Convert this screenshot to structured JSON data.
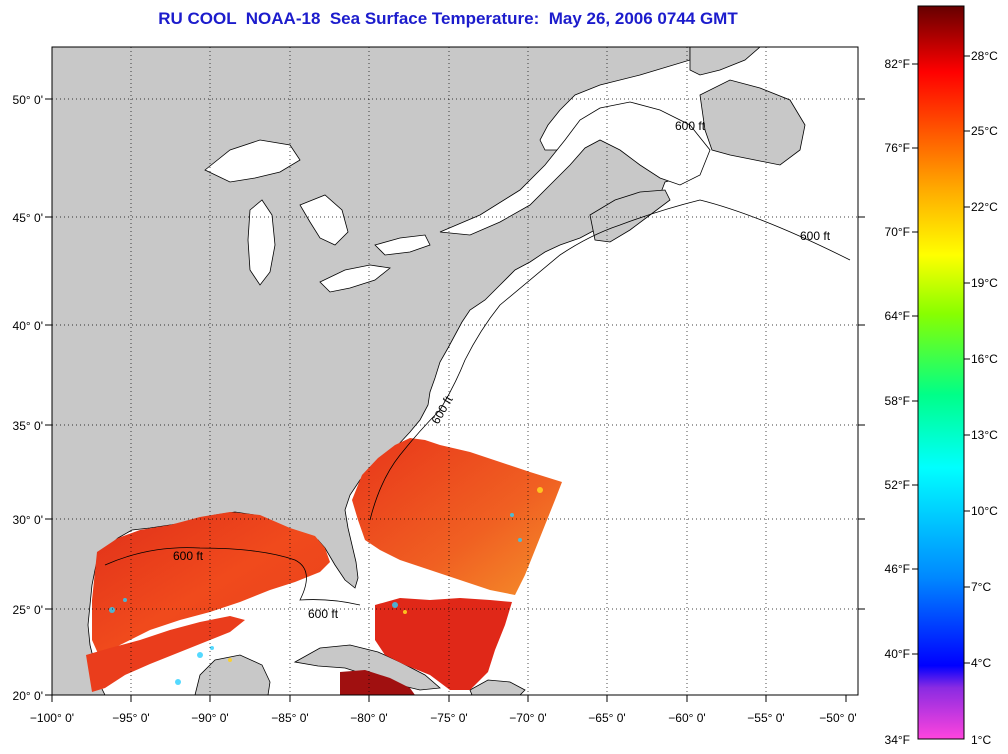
{
  "title": "RU COOL  NOAA-18  Sea Surface Temperature:  May 26, 2006 0744 GMT",
  "map": {
    "lon_range": [
      -100,
      -50
    ],
    "lat_range": [
      20,
      52.5
    ],
    "lon_ticks": [
      "−100° 0'",
      "−95° 0'",
      "−90° 0'",
      "−85° 0'",
      "−80° 0'",
      "−75° 0'",
      "−70° 0'",
      "−65° 0'",
      "−60° 0'",
      "−55° 0'",
      "−50° 0'"
    ],
    "lat_ticks": [
      "20° 0'",
      "25° 0'",
      "30° 0'",
      "35° 0'",
      "40° 0'",
      "45° 0'",
      "50° 0'"
    ],
    "contour_label": "600 ft",
    "land_color": "#c8c8c8",
    "ocean_color": "#ffffff",
    "grid": "dotted"
  },
  "colorbar": {
    "fahrenheit_labels": [
      "82°F",
      "76°F",
      "70°F",
      "64°F",
      "58°F",
      "52°F",
      "46°F",
      "40°F",
      "34°F"
    ],
    "celsius_labels": [
      "28°C",
      "25°C",
      "22°C",
      "19°C",
      "16°C",
      "13°C",
      "10°C",
      "7°C",
      "4°C",
      "1°C"
    ],
    "colors": [
      "#ff44dd",
      "#8a2be2",
      "#0000ff",
      "#0088ff",
      "#00ffff",
      "#00ff88",
      "#88ff00",
      "#ffff00",
      "#ffaa00",
      "#ff5500",
      "#ff0000",
      "#aa0000",
      "#660000"
    ]
  }
}
